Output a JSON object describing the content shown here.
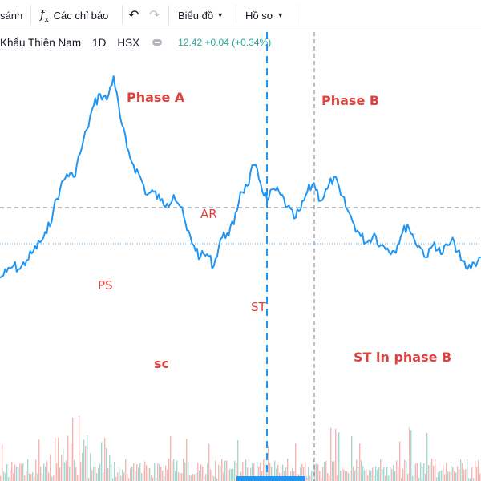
{
  "toolbar": {
    "compare_label": "sánh",
    "indicators_label": "Các chỉ báo",
    "chart_type_label": "Biểu đồ",
    "profile_label": "Hồ sơ"
  },
  "legend": {
    "symbol_name": "Khẩu Thiên Nam",
    "interval": "1D",
    "exchange": "HSX",
    "price": "12.42",
    "change": "+0.04 (+0.34%)"
  },
  "colors": {
    "price_line": "#2196f3",
    "annotation": "#e0413f",
    "volume_up": "#a7d8cf",
    "volume_down": "#f5b7b3",
    "price_marker_line": "#42a5f5",
    "crosshair": "#787b86"
  },
  "annotations": [
    {
      "text": "Phase A"
    },
    {
      "text": "Phase B"
    },
    {
      "text": "AR"
    },
    {
      "text": "PS"
    },
    {
      "text": "ST"
    },
    {
      "text": "sc"
    },
    {
      "text": "ST in phase B"
    }
  ],
  "chart_data": {
    "type": "line",
    "title": "",
    "xlabel": "",
    "ylabel": "",
    "last_price": 12.42,
    "series": [
      {
        "values": [
          0.32,
          0.34,
          0.36,
          0.35,
          0.38,
          0.41,
          0.44,
          0.47,
          0.55,
          0.62,
          0.67,
          0.66,
          0.74,
          0.82,
          0.9,
          0.94,
          0.92,
          1.0,
          0.86,
          0.76,
          0.7,
          0.66,
          0.6,
          0.61,
          0.58,
          0.57,
          0.6,
          0.56,
          0.48,
          0.43,
          0.39,
          0.4,
          0.36,
          0.45,
          0.47,
          0.5,
          0.61,
          0.63,
          0.7,
          0.64,
          0.58,
          0.62,
          0.6,
          0.56,
          0.52,
          0.55,
          0.61,
          0.64,
          0.58,
          0.62,
          0.66,
          0.6,
          0.55,
          0.5,
          0.46,
          0.44,
          0.47,
          0.43,
          0.42,
          0.41,
          0.46,
          0.5,
          0.45,
          0.42,
          0.39,
          0.44,
          0.4,
          0.43,
          0.44,
          0.38,
          0.35,
          0.37,
          0.39
        ]
      }
    ]
  }
}
